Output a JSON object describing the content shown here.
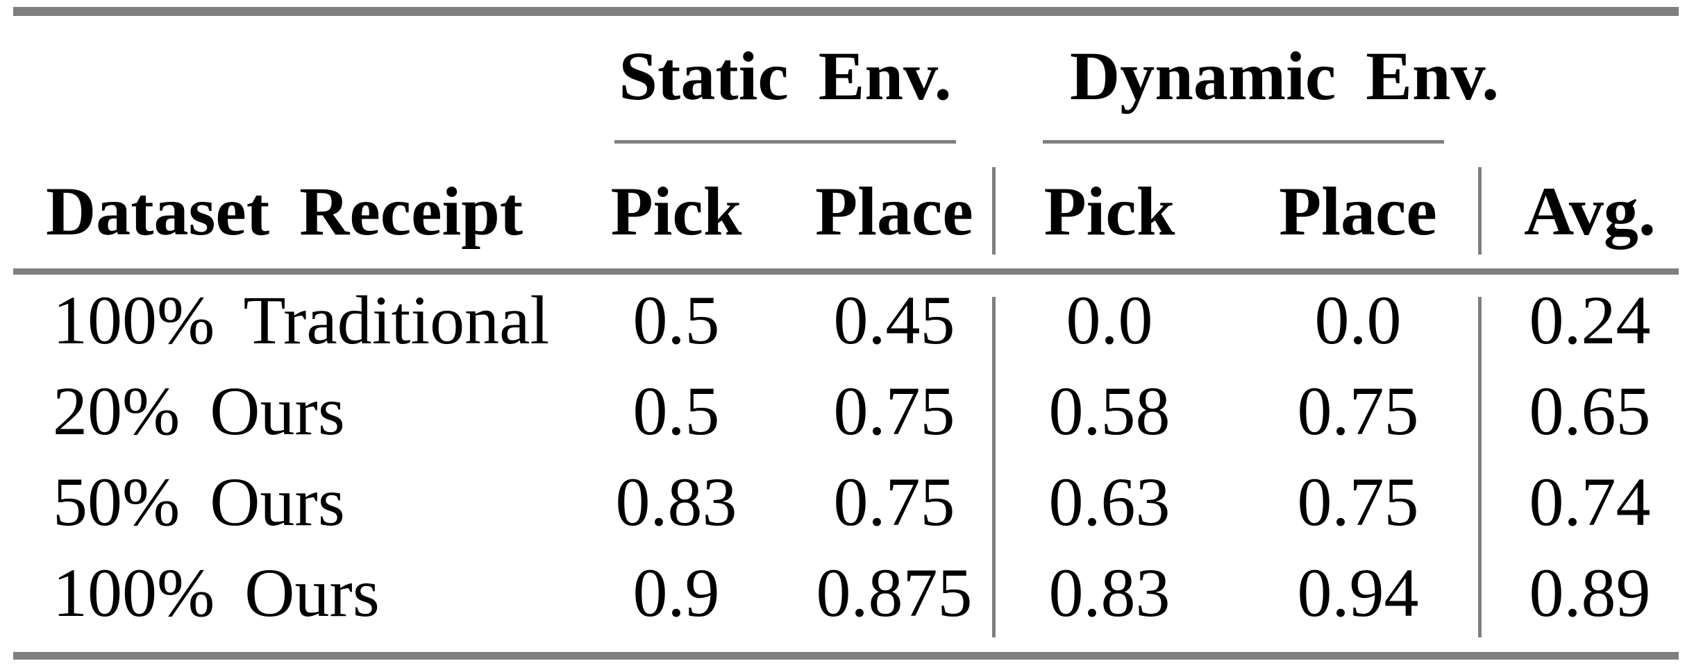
{
  "colors": {
    "background": "#ffffff",
    "rule_gray": "#7f7f7f",
    "text": "#000000"
  },
  "table": {
    "group_headers": {
      "static": "Static Env.",
      "dynamic": "Dynamic Env."
    },
    "column_headers": {
      "row_label": "Dataset Receipt",
      "static_pick": "Pick",
      "static_place": "Place",
      "dynamic_pick": "Pick",
      "dynamic_place": "Place",
      "avg": "Avg."
    },
    "rows": [
      {
        "label": "100% Traditional",
        "values": [
          "0.5",
          "0.45",
          "0.0",
          "0.0",
          "0.24"
        ]
      },
      {
        "label": "20% Ours",
        "values": [
          "0.5",
          "0.75",
          "0.58",
          "0.75",
          "0.65"
        ]
      },
      {
        "label": "50% Ours",
        "values": [
          "0.83",
          "0.75",
          "0.63",
          "0.75",
          "0.74"
        ]
      },
      {
        "label": "100% Ours",
        "values": [
          "0.9",
          "0.875",
          "0.83",
          "0.94",
          "0.89"
        ]
      }
    ]
  }
}
